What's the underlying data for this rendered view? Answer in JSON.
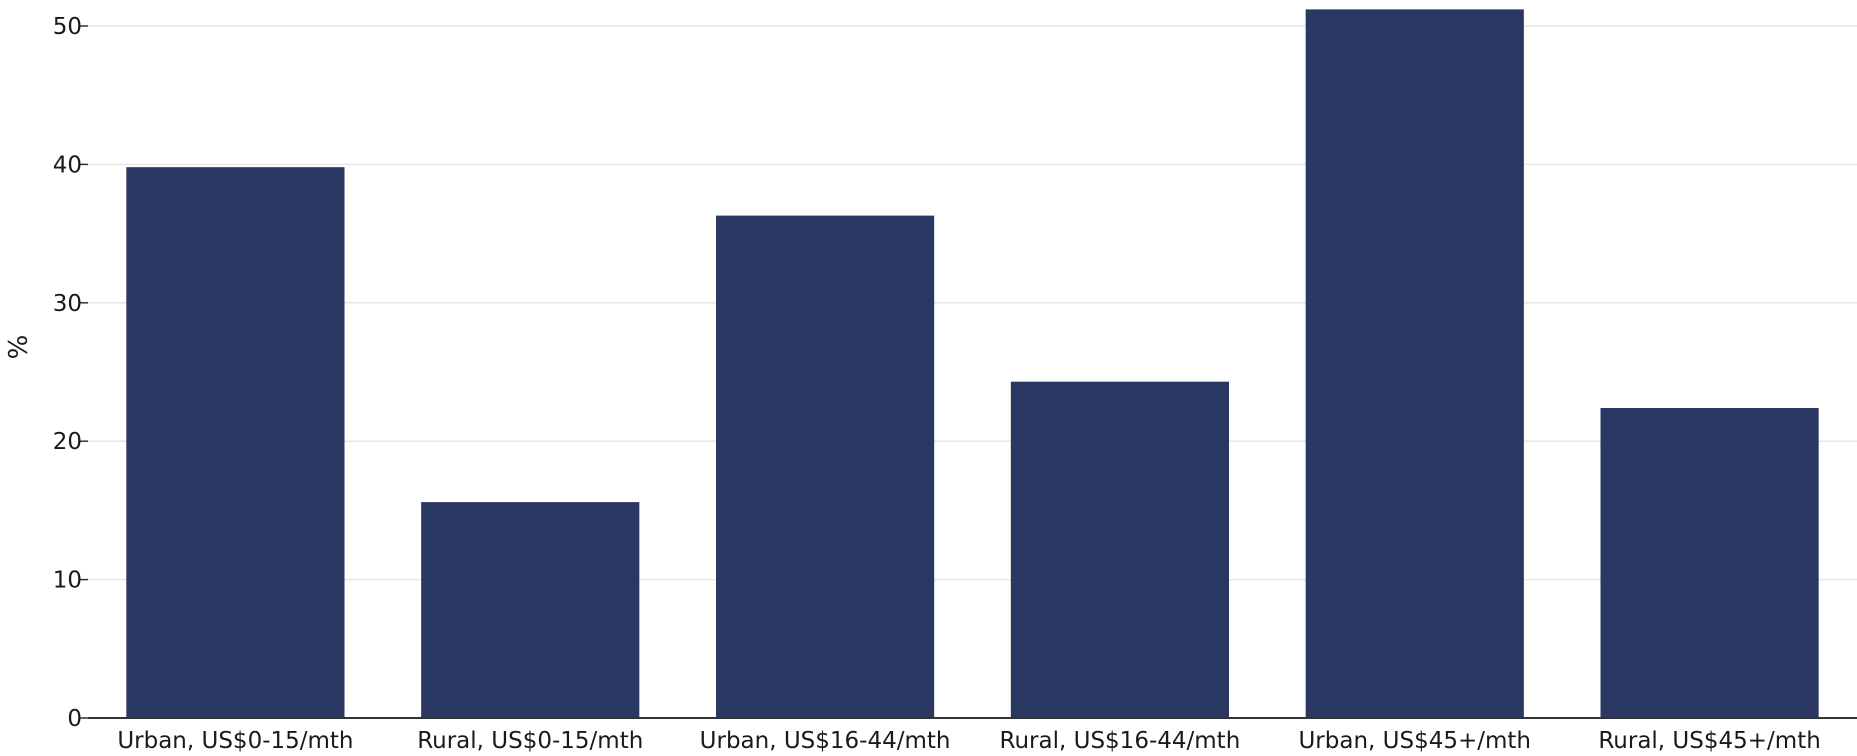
{
  "chart_data": {
    "type": "bar",
    "categories": [
      "Urban, US$0-15/mth",
      "Rural, US$0-15/mth",
      "Urban, US$16-44/mth",
      "Rural, US$16-44/mth",
      "Urban, US$45+/mth",
      "Rural, US$45+/mth"
    ],
    "values": [
      39.8,
      15.6,
      36.3,
      24.3,
      51.2,
      22.4
    ],
    "title": "",
    "xlabel": "",
    "ylabel": "%",
    "ylim": [
      0,
      52
    ],
    "yticks": [
      0,
      10,
      20,
      30,
      40,
      50
    ],
    "grid": true,
    "legend": "none",
    "colors": {
      "bar": "#2b3763",
      "grid": "#e6e6e6",
      "axis": "#333333",
      "text": "#1a1a1a"
    }
  }
}
